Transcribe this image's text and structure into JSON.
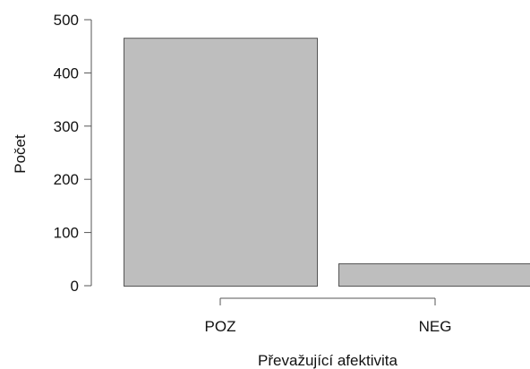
{
  "chart_data": {
    "type": "bar",
    "categories": [
      "POZ",
      "NEG"
    ],
    "values": [
      466,
      42
    ],
    "xlabel": "Převažující afektivita",
    "ylabel": "Počet",
    "ylim": [
      0,
      500
    ],
    "yticks": [
      0,
      100,
      200,
      300,
      400,
      500
    ],
    "grid": false,
    "legend": "none",
    "bar_color": "#bebebe",
    "bar_edge_color": "#555555",
    "axis_color": "#555555"
  }
}
